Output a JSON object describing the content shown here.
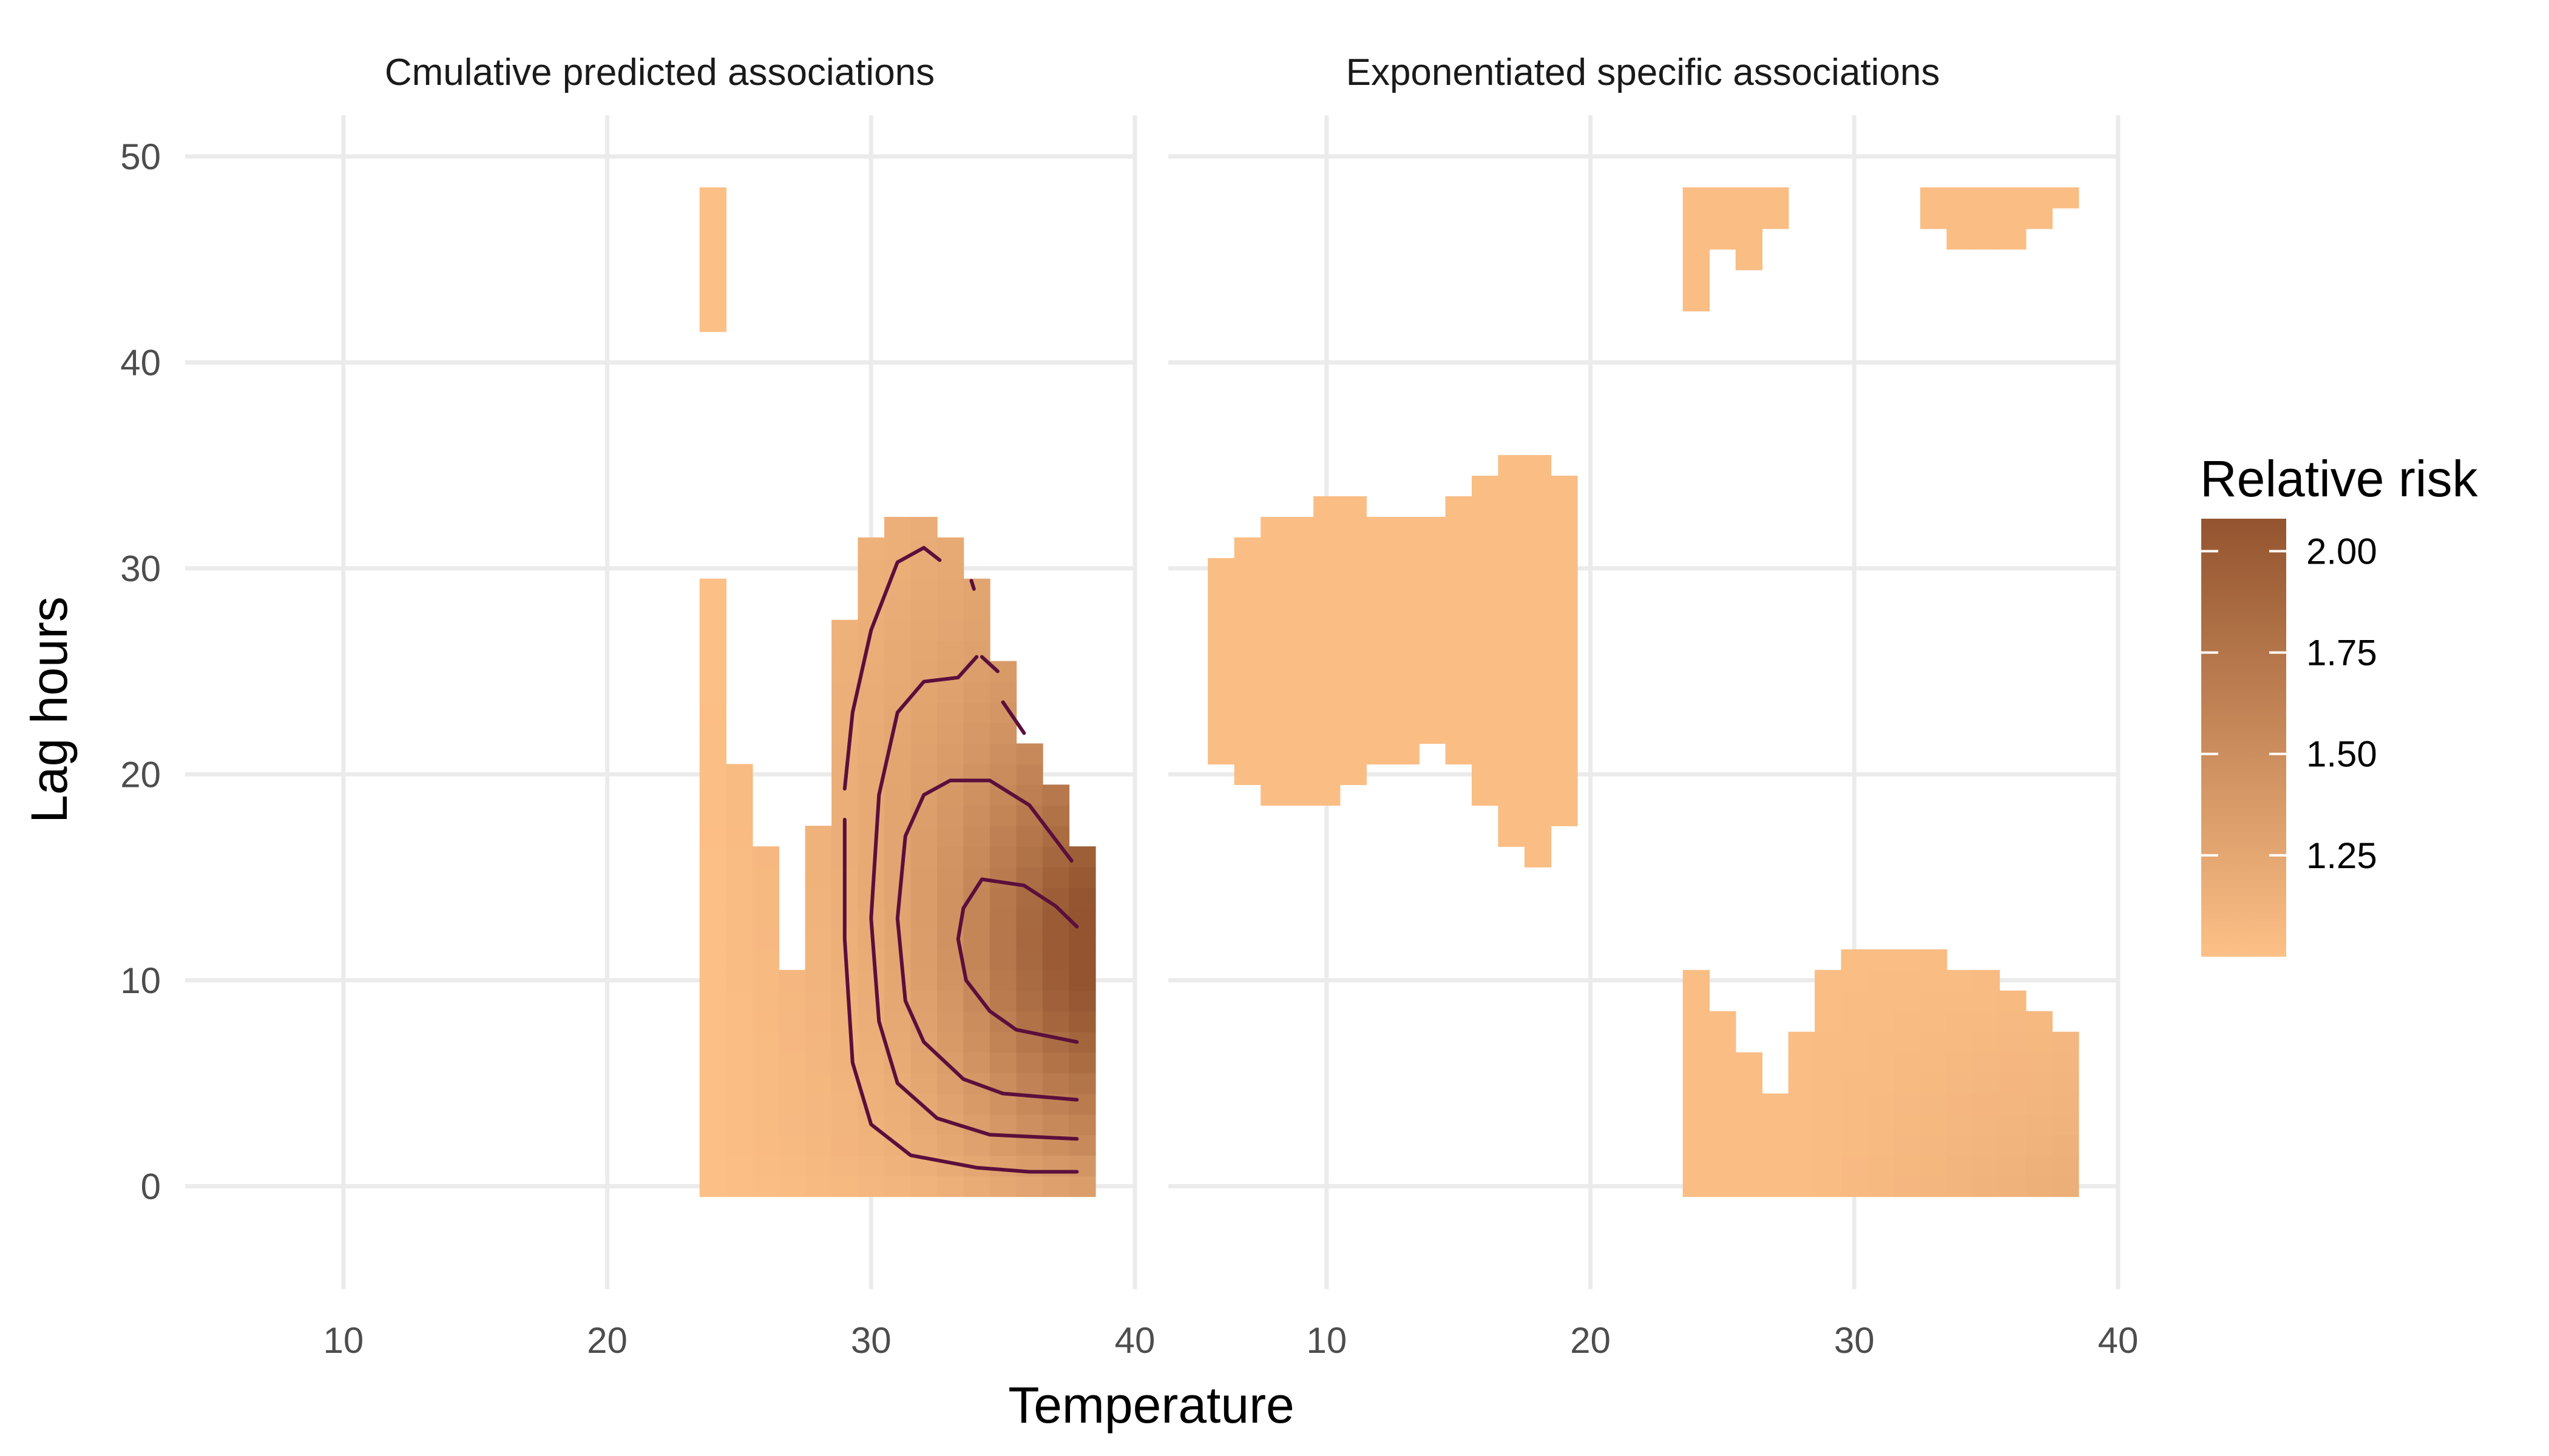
{
  "chart_data": {
    "type": "heatmap",
    "xlabel": "Temperature",
    "ylabel": "Lag hours",
    "xlim": [
      4,
      40
    ],
    "ylim": [
      -5,
      52
    ],
    "x_ticks": [
      10,
      20,
      30,
      40
    ],
    "y_ticks": [
      0,
      10,
      20,
      30,
      40,
      50
    ],
    "x_tick_labels": [
      "10",
      "20",
      "30",
      "40"
    ],
    "y_tick_labels": [
      "0",
      "10",
      "20",
      "30",
      "40",
      "50"
    ],
    "grid": true,
    "legend": {
      "title": "Relative risk",
      "position": "right",
      "range": [
        1.0,
        2.08
      ],
      "ticks": [
        1.25,
        1.5,
        1.75,
        2.0
      ],
      "tick_labels": [
        "1.25",
        "1.50",
        "1.75",
        "2.00"
      ],
      "color_low": "#FDC086",
      "color_high": "#93542F"
    },
    "panels": [
      {
        "title": "Cmulative predicted associations",
        "surface": "cumulative",
        "regions": [
          {
            "x_min": 24,
            "x_max": 24,
            "y_min": 42,
            "y_max": 48
          },
          {
            "x_min": 24,
            "x_max": 24,
            "y_min": 0,
            "y_max": 29
          },
          {
            "x_min": 25,
            "x_max": 25,
            "y_min": 0,
            "y_max": 20
          },
          {
            "x_min": 26,
            "x_max": 26,
            "y_min": 0,
            "y_max": 16
          },
          {
            "x_min": 27,
            "x_max": 27,
            "y_min": 0,
            "y_max": 10
          },
          {
            "x_min": 28,
            "x_max": 28,
            "y_min": 0,
            "y_max": 17
          },
          {
            "x_min": 29,
            "x_max": 29,
            "y_min": 0,
            "y_max": 27
          },
          {
            "x_min": 30,
            "x_max": 30,
            "y_min": 0,
            "y_max": 31
          },
          {
            "x_min": 31,
            "x_max": 32,
            "y_min": 0,
            "y_max": 32
          },
          {
            "x_min": 33,
            "x_max": 33,
            "y_min": 0,
            "y_max": 31
          },
          {
            "x_min": 34,
            "x_max": 34,
            "y_min": 0,
            "y_max": 29
          },
          {
            "x_min": 35,
            "x_max": 35,
            "y_min": 0,
            "y_max": 25
          },
          {
            "x_min": 36,
            "x_max": 36,
            "y_min": 0,
            "y_max": 21
          },
          {
            "x_min": 37,
            "x_max": 37,
            "y_min": 0,
            "y_max": 19
          },
          {
            "x_min": 38,
            "x_max": 38,
            "y_min": 0,
            "y_max": 16
          }
        ],
        "contours": [
          [
            [
              29.0,
              17.8
            ],
            [
              29.0,
              12.0
            ],
            [
              29.3,
              6.0
            ],
            [
              30.0,
              3.0
            ],
            [
              31.5,
              1.5
            ],
            [
              34.0,
              0.9
            ],
            [
              36.0,
              0.7
            ],
            [
              37.8,
              0.7
            ]
          ],
          [
            [
              29.0,
              19.3
            ],
            [
              29.3,
              23.0
            ],
            [
              30.0,
              27.0
            ],
            [
              31.0,
              30.3
            ],
            [
              32.0,
              31.0
            ],
            [
              32.6,
              30.4
            ]
          ],
          [
            [
              33.8,
              29.4
            ],
            [
              33.9,
              29.0
            ]
          ],
          [
            [
              35.0,
              23.5
            ],
            [
              35.8,
              22.0
            ]
          ],
          [
            [
              34.8,
              25.0
            ],
            [
              34.2,
              25.7
            ]
          ],
          [
            [
              34.0,
              25.7
            ],
            [
              33.3,
              24.7
            ],
            [
              32.0,
              24.5
            ],
            [
              31.0,
              23.0
            ],
            [
              30.3,
              19.0
            ],
            [
              30.0,
              13.0
            ],
            [
              30.3,
              8.0
            ],
            [
              31.0,
              5.0
            ],
            [
              32.5,
              3.3
            ],
            [
              34.5,
              2.5
            ],
            [
              37.8,
              2.3
            ]
          ],
          [
            [
              37.6,
              15.8
            ],
            [
              36.0,
              18.5
            ],
            [
              34.5,
              19.7
            ],
            [
              33.0,
              19.7
            ],
            [
              32.0,
              19.0
            ],
            [
              31.3,
              17.0
            ],
            [
              31.0,
              13.0
            ],
            [
              31.3,
              9.0
            ],
            [
              32.0,
              7.0
            ],
            [
              33.5,
              5.2
            ],
            [
              35.0,
              4.5
            ],
            [
              37.8,
              4.2
            ]
          ],
          [
            [
              37.8,
              12.6
            ],
            [
              37.0,
              13.6
            ],
            [
              35.8,
              14.6
            ],
            [
              34.2,
              14.9
            ],
            [
              33.5,
              13.5
            ],
            [
              33.3,
              12.0
            ],
            [
              33.6,
              10.0
            ],
            [
              34.5,
              8.5
            ],
            [
              35.5,
              7.6
            ],
            [
              37.8,
              7.0
            ]
          ]
        ]
      },
      {
        "title": "Exponentiated specific associations",
        "surface": "specific",
        "regions": [
          {
            "x_min": 6,
            "x_max": 6,
            "y_min": 21,
            "y_max": 30
          },
          {
            "x_min": 7,
            "x_max": 7,
            "y_min": 20,
            "y_max": 31
          },
          {
            "x_min": 8,
            "x_max": 9,
            "y_min": 19,
            "y_max": 32
          },
          {
            "x_min": 10,
            "x_max": 10,
            "y_min": 19,
            "y_max": 33
          },
          {
            "x_min": 11,
            "x_max": 11,
            "y_min": 20,
            "y_max": 33
          },
          {
            "x_min": 12,
            "x_max": 13,
            "y_min": 21,
            "y_max": 32
          },
          {
            "x_min": 14,
            "x_max": 14,
            "y_min": 22,
            "y_max": 32
          },
          {
            "x_min": 15,
            "x_max": 15,
            "y_min": 21,
            "y_max": 33
          },
          {
            "x_min": 16,
            "x_max": 16,
            "y_min": 19,
            "y_max": 34
          },
          {
            "x_min": 17,
            "x_max": 17,
            "y_min": 17,
            "y_max": 35
          },
          {
            "x_min": 18,
            "x_max": 18,
            "y_min": 16,
            "y_max": 35
          },
          {
            "x_min": 19,
            "x_max": 19,
            "y_min": 18,
            "y_max": 34
          },
          {
            "x_min": 24,
            "x_max": 24,
            "y_min": 43,
            "y_max": 48
          },
          {
            "x_min": 25,
            "x_max": 25,
            "y_min": 46,
            "y_max": 48
          },
          {
            "x_min": 26,
            "x_max": 26,
            "y_min": 45,
            "y_max": 48
          },
          {
            "x_min": 27,
            "x_max": 27,
            "y_min": 47,
            "y_max": 48
          },
          {
            "x_min": 33,
            "x_max": 33,
            "y_min": 47,
            "y_max": 48
          },
          {
            "x_min": 34,
            "x_max": 36,
            "y_min": 46,
            "y_max": 48
          },
          {
            "x_min": 37,
            "x_max": 37,
            "y_min": 47,
            "y_max": 48
          },
          {
            "x_min": 38,
            "x_max": 38,
            "y_min": 48,
            "y_max": 48
          },
          {
            "x_min": 24,
            "x_max": 24,
            "y_min": 0,
            "y_max": 10
          },
          {
            "x_min": 25,
            "x_max": 25,
            "y_min": 0,
            "y_max": 8
          },
          {
            "x_min": 26,
            "x_max": 26,
            "y_min": 0,
            "y_max": 6
          },
          {
            "x_min": 27,
            "x_max": 27,
            "y_min": 0,
            "y_max": 4
          },
          {
            "x_min": 28,
            "x_max": 28,
            "y_min": 0,
            "y_max": 7
          },
          {
            "x_min": 29,
            "x_max": 29,
            "y_min": 0,
            "y_max": 10
          },
          {
            "x_min": 30,
            "x_max": 33,
            "y_min": 0,
            "y_max": 11
          },
          {
            "x_min": 34,
            "x_max": 35,
            "y_min": 0,
            "y_max": 10
          },
          {
            "x_min": 36,
            "x_max": 36,
            "y_min": 0,
            "y_max": 9
          },
          {
            "x_min": 37,
            "x_max": 37,
            "y_min": 0,
            "y_max": 8
          },
          {
            "x_min": 38,
            "x_max": 38,
            "y_min": 0,
            "y_max": 7
          }
        ],
        "contours": []
      }
    ]
  }
}
